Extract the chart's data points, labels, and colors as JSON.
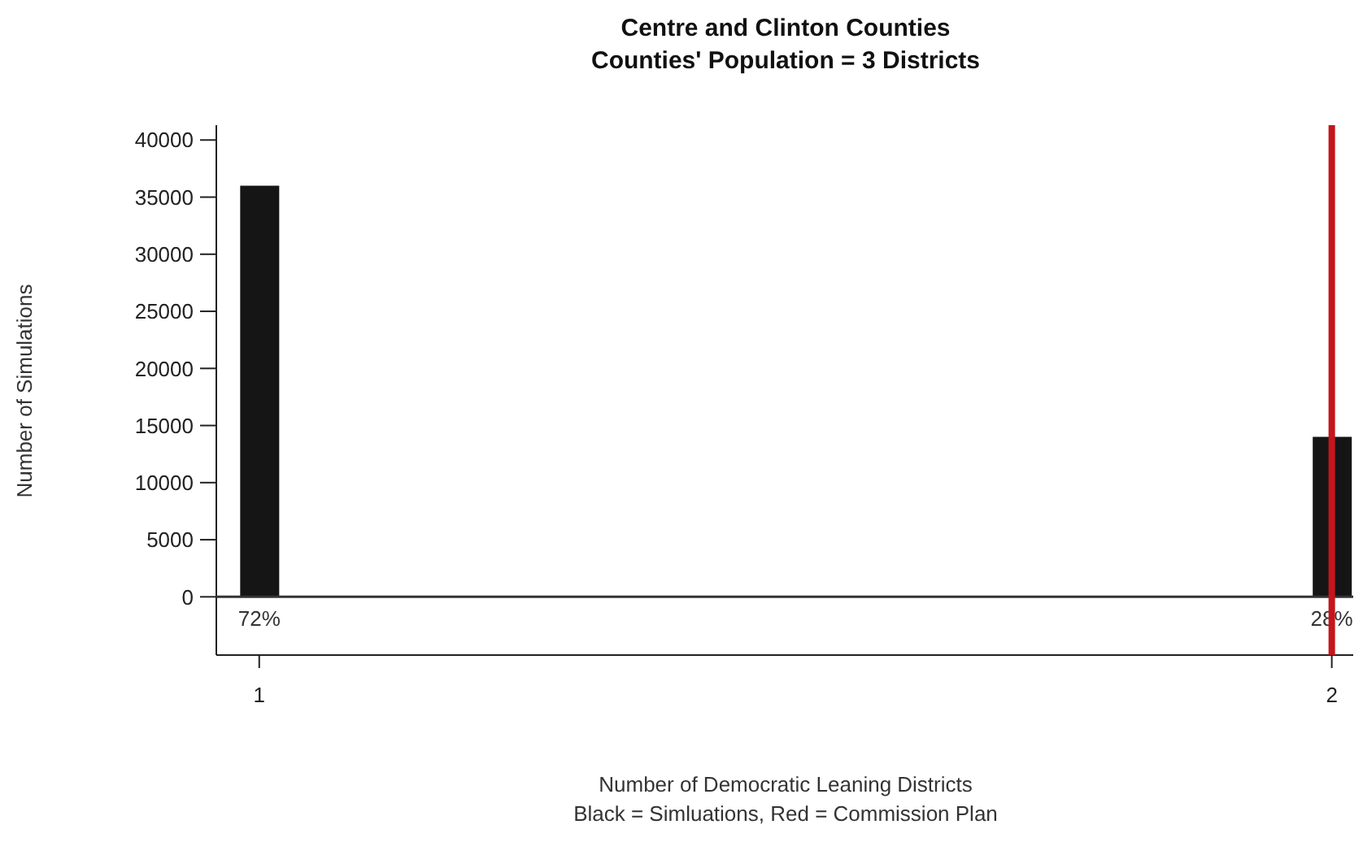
{
  "chart_data": {
    "type": "bar",
    "title": "Centre and Clinton Counties",
    "subtitle": "Counties' Population = 3 Districts",
    "xlabel": "Number of Democratic Leaning Districts",
    "ylabel": "Number of Simulations",
    "annotations": [
      "Black = Simluations, Red = Commission Plan",
      {
        "text": "72%",
        "x": 1,
        "y": 0
      },
      {
        "text": "28%",
        "x": 2,
        "y": 0
      }
    ],
    "x": [
      1,
      2
    ],
    "values": [
      36000,
      14000
    ],
    "color": "#151515",
    "xlim": [
      0.96,
      2.02
    ],
    "xticks": [
      1,
      2
    ],
    "ylim": [
      -5100,
      41300
    ],
    "yticks": [
      0,
      5000,
      10000,
      15000,
      20000,
      25000,
      30000,
      35000,
      40000
    ],
    "ref_lines": [
      {
        "axis": "x",
        "value": 2,
        "color": "#c4161c"
      }
    ],
    "grid": false,
    "legend": false
  }
}
